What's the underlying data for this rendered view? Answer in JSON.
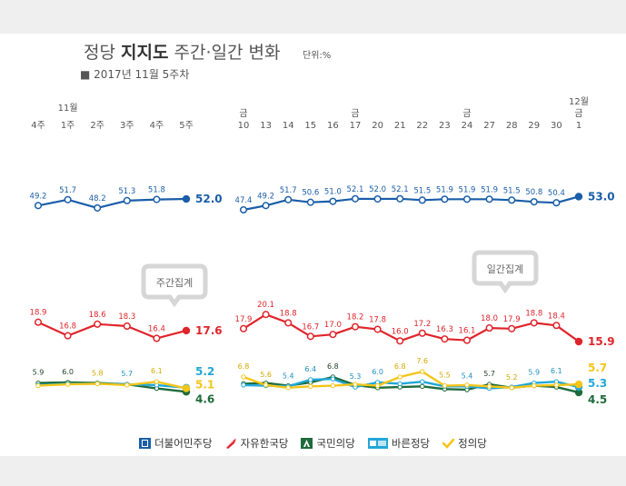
{
  "header": {
    "title_prefix": "정당 ",
    "title_bold": "지지도",
    "title_suffix": " 주간·일간 변화",
    "unit": "단위:%",
    "subtitle": "■ 2017년 11월 5주차"
  },
  "bubbles": {
    "weekly": "주간집계",
    "daily": "일간집계"
  },
  "colors": {
    "democratic": "#1a5ea8",
    "liberty_korea": "#e0242b",
    "peoples": "#1f6b3a",
    "bareun": "#22a7d8",
    "justice": "#f5c518"
  },
  "chart_data": [
    {
      "type": "line",
      "panel": "weekly",
      "categories": [
        "4주",
        "1주",
        "2주",
        "3주",
        "4주",
        "5주"
      ],
      "month_labels": [
        "",
        "11월",
        "",
        "",
        "",
        ""
      ],
      "series": [
        {
          "name": "더불어민주당",
          "values": [
            49.2,
            51.7,
            48.2,
            51.3,
            51.8,
            52.0
          ],
          "labels": [
            "49.2",
            "51.7",
            "48.2",
            "51.3",
            "51.8",
            "52.0"
          ]
        },
        {
          "name": "자유한국당",
          "values": [
            18.9,
            16.8,
            18.6,
            18.3,
            16.4,
            17.6
          ],
          "labels": [
            "18.9",
            "16.8",
            "18.6",
            "18.3",
            "16.4",
            "17.6"
          ]
        },
        {
          "name": "국민의당",
          "values": [
            5.9,
            6.0,
            5.9,
            5.7,
            5.1,
            4.6
          ],
          "labels": [
            "5.9",
            "6.0",
            "",
            "",
            "",
            "4.6"
          ]
        },
        {
          "name": "바른정당",
          "values": [
            5.6,
            5.8,
            5.8,
            5.7,
            5.6,
            5.2
          ],
          "labels": [
            "",
            "",
            "",
            "5.7",
            "",
            "5.2"
          ]
        },
        {
          "name": "정의당",
          "values": [
            5.5,
            5.7,
            5.8,
            5.6,
            6.1,
            5.1
          ],
          "labels": [
            "",
            "",
            "5.8",
            "",
            "6.1",
            "5.1"
          ]
        }
      ]
    },
    {
      "type": "line",
      "panel": "daily",
      "categories": [
        "10",
        "13",
        "14",
        "15",
        "16",
        "17",
        "20",
        "21",
        "22",
        "23",
        "24",
        "27",
        "28",
        "29",
        "30",
        "1"
      ],
      "month_labels": [
        "",
        "",
        "",
        "",
        "",
        "",
        "",
        "",
        "",
        "",
        "",
        "",
        "",
        "",
        "",
        "12월"
      ],
      "weekday_labels": [
        "금",
        "",
        "",
        "",
        "",
        "금",
        "",
        "",
        "",
        "",
        "금",
        "",
        "",
        "",
        "",
        "금"
      ],
      "series": [
        {
          "name": "더불어민주당",
          "values": [
            47.4,
            49.2,
            51.7,
            50.6,
            51.0,
            52.1,
            52.0,
            52.1,
            51.5,
            51.9,
            51.9,
            51.9,
            51.5,
            50.8,
            50.4,
            53.0
          ],
          "labels": [
            "47.4",
            "49.2",
            "51.7",
            "50.6",
            "51.0",
            "52.1",
            "52.0",
            "52.1",
            "51.5",
            "51.9",
            "51.9",
            "51.9",
            "51.5",
            "50.8",
            "50.4",
            "53.0"
          ]
        },
        {
          "name": "자유한국당",
          "values": [
            17.9,
            20.1,
            18.8,
            16.7,
            17.0,
            18.2,
            17.8,
            16.0,
            17.2,
            16.3,
            16.1,
            18.0,
            17.9,
            18.8,
            18.4,
            15.9
          ],
          "labels": [
            "17.9",
            "20.1",
            "18.8",
            "16.7",
            "17.0",
            "18.2",
            "17.8",
            "16.0",
            "17.2",
            "16.3",
            "16.1",
            "18.0",
            "17.9",
            "18.8",
            "18.4",
            "15.9"
          ]
        },
        {
          "name": "국민의당",
          "values": [
            5.8,
            5.9,
            5.5,
            6.0,
            6.8,
            5.6,
            5.2,
            5.3,
            5.4,
            5.0,
            4.9,
            5.7,
            5.2,
            5.5,
            5.3,
            4.5
          ],
          "labels": [
            "",
            "",
            "",
            "",
            "6.8",
            "",
            "",
            "",
            "",
            "",
            "",
            "5.7",
            "",
            "",
            "",
            "4.5"
          ]
        },
        {
          "name": "바른정당",
          "values": [
            5.6,
            5.5,
            5.4,
            6.4,
            6.5,
            5.3,
            6.0,
            5.8,
            6.1,
            5.4,
            5.4,
            5.1,
            5.3,
            5.9,
            6.1,
            5.3
          ],
          "labels": [
            "",
            "",
            "5.4",
            "6.4",
            "",
            "5.3",
            "6.0",
            "",
            "",
            "",
            "5.4",
            "",
            "",
            "5.9",
            "6.1",
            "5.3"
          ]
        },
        {
          "name": "정의당",
          "values": [
            6.8,
            5.6,
            5.2,
            5.4,
            5.5,
            5.7,
            5.5,
            6.8,
            7.6,
            5.5,
            5.6,
            5.4,
            5.2,
            5.5,
            5.6,
            5.7
          ],
          "labels": [
            "6.8",
            "5.6",
            "",
            "",
            "",
            "",
            "",
            "6.8",
            "7.6",
            "5.5",
            "",
            "",
            "5.2",
            "",
            "",
            "5.7"
          ]
        }
      ]
    }
  ],
  "legend": [
    {
      "label": "더불어민주당",
      "icon": "flag-icon"
    },
    {
      "label": "자유한국당",
      "icon": "torch-icon"
    },
    {
      "label": "국민의당",
      "icon": "people-icon"
    },
    {
      "label": "바른정당",
      "icon": "bareun-logo"
    },
    {
      "label": "정의당",
      "icon": "check-icon"
    }
  ]
}
